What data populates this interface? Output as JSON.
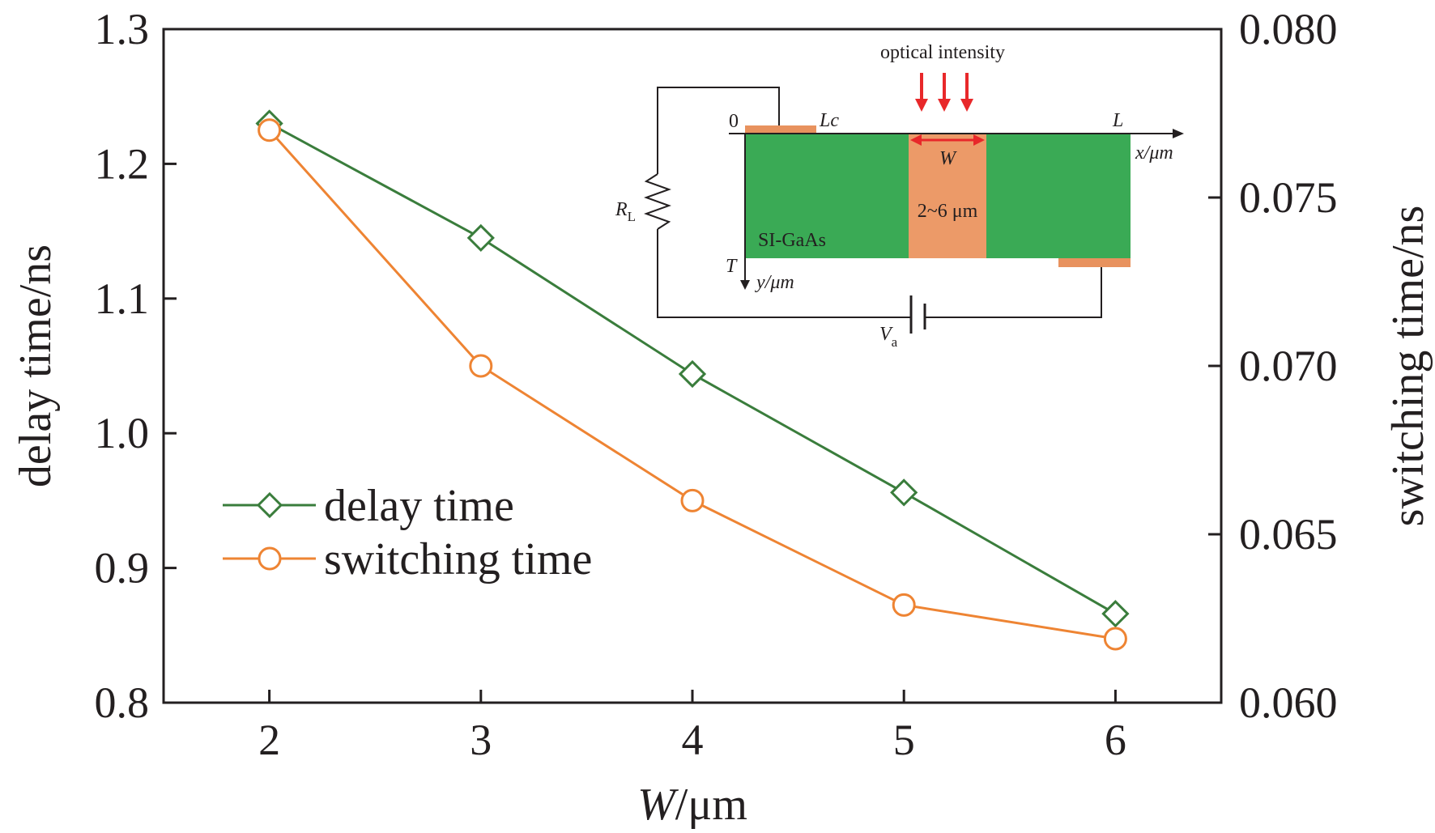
{
  "chart_data": {
    "type": "line",
    "x": [
      2,
      3,
      4,
      5,
      6
    ],
    "xticks": [
      "2",
      "3",
      "4",
      "5",
      "6"
    ],
    "xlim": [
      1.5,
      6.5
    ],
    "xlabel_var": "W",
    "xlabel_unit": "/μm",
    "ylabel_left": "delay time/ns",
    "ylabel_right": "switching time/ns",
    "ylim_left": [
      0.8,
      1.3
    ],
    "yticks_left": [
      "0.8",
      "0.9",
      "1.0",
      "1.1",
      "1.2",
      "1.3"
    ],
    "ylim_right": [
      0.06,
      0.08
    ],
    "yticks_right": [
      "0.060",
      "0.065",
      "0.070",
      "0.075",
      "0.080"
    ],
    "series": [
      {
        "name": "delay time",
        "axis": "left",
        "marker": "diamond",
        "color": "#3a7d3c",
        "values": [
          1.23,
          1.145,
          1.044,
          0.956,
          0.866
        ]
      },
      {
        "name": "switching time",
        "axis": "right",
        "marker": "circle",
        "color": "#ee8433",
        "values": [
          0.077,
          0.07,
          0.066,
          0.0629,
          0.0619
        ]
      }
    ],
    "legend_placement": "left-middle",
    "grid": false
  },
  "inset": {
    "optical_label": "optical intensity",
    "origin": "0",
    "lc_label": "Lc",
    "l_label": "L",
    "w_label": "W",
    "xaxis_label": "x/μm",
    "yaxis_label": "y/μm",
    "t_label": "T",
    "material": "SI-GaAs",
    "width_range": "2~6 μm",
    "rl_main": "R",
    "rl_sub": "L",
    "va_main": "V",
    "va_sub": "a",
    "colors": {
      "substrate": "#3aaa55",
      "window": "#ec9a68",
      "electrode": "#e8925e",
      "arrow": "#e8282a"
    }
  }
}
